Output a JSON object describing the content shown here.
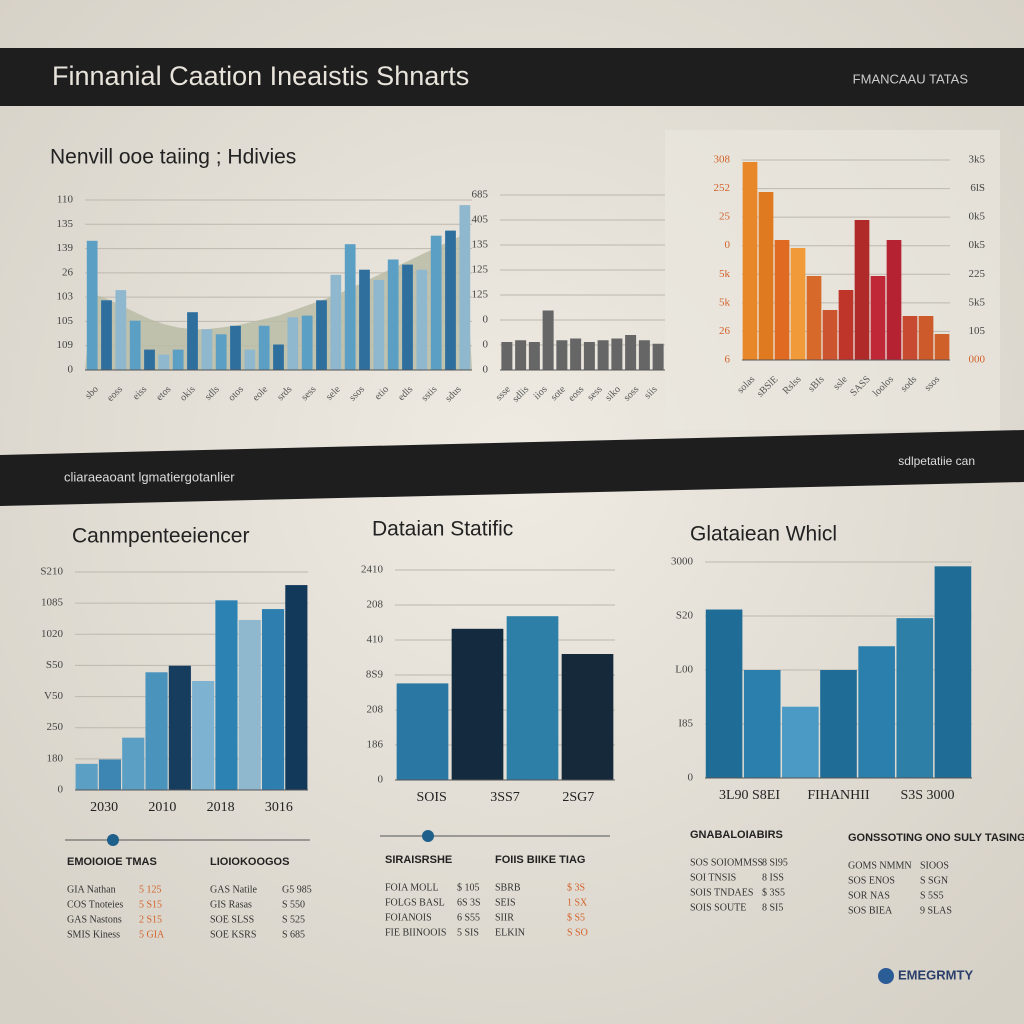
{
  "header": {
    "title": "Finnanial Caation Ineaistis Shnarts",
    "right": "FMANCAAU TATAS"
  },
  "band": {
    "left": "cliaraeaoant lgmatiergotanlier",
    "right": "sdlpetatiie can"
  },
  "logo": "EMEGRMTY",
  "chart_data": [
    {
      "type": "bar",
      "title": "Nenvill ooe taiing ; Hdivies",
      "ylim": [
        0,
        100
      ],
      "y_axis_labels": [
        "0",
        "109",
        "105",
        "103",
        "26",
        "139",
        "135",
        "110"
      ],
      "values": [
        76,
        41,
        47,
        29,
        12,
        9,
        12,
        34,
        24,
        21,
        26,
        12,
        26,
        15,
        31,
        32,
        41,
        56,
        74,
        59,
        53,
        65,
        62,
        59,
        79,
        82,
        97
      ],
      "area": [
        45,
        42,
        38,
        34,
        30,
        27,
        25,
        24,
        24,
        25,
        26,
        28,
        30,
        32,
        35,
        38,
        41,
        44,
        48,
        52,
        56,
        60,
        64,
        68,
        72,
        76,
        80
      ],
      "area_color": "#b9bca6",
      "colors": [
        "#5b9fc4",
        "#2e6f9e",
        "#8fb8cf"
      ],
      "x_labels": [
        "sbo",
        "eoss",
        "eiss",
        "etos",
        "okis",
        "sdls",
        "otos",
        "eole",
        "srds",
        "sess",
        "sele",
        "ssos",
        "etio",
        "edls",
        "sstis",
        "sdus"
      ]
    },
    {
      "type": "bar",
      "ylim": [
        0,
        100
      ],
      "y_axis_labels": [
        "0",
        "0",
        "0",
        "125",
        "125",
        "135",
        "405",
        "685"
      ],
      "values": [
        16,
        17,
        16,
        34,
        17,
        18,
        16,
        17,
        18,
        20,
        17,
        15
      ],
      "colors": [
        "#666666"
      ],
      "x_labels": [
        "ssse",
        "sdlis",
        "iios",
        "sote",
        "eoss",
        "sess",
        "siko",
        "soss",
        "siis"
      ]
    },
    {
      "type": "bar",
      "ylim": [
        0,
        100
      ],
      "y_axis_labels": [
        "6",
        "26",
        "5k",
        "5k",
        "0",
        "25",
        "252",
        "308"
      ],
      "y2_axis_labels": [
        "000",
        "105",
        "5k5",
        "225",
        "0k5",
        "0k5",
        "6lS",
        "3k5"
      ],
      "values": [
        99,
        84,
        60,
        56,
        42,
        25,
        35,
        70,
        42,
        60,
        22,
        22,
        13
      ],
      "colors": [
        "#e8872a",
        "#e07a20",
        "#e06a22",
        "#f09a3a",
        "#d76a2a",
        "#cc5530",
        "#c0352a",
        "#b02a2a",
        "#c02838",
        "#b52232",
        "#c84a30",
        "#cc5a2a",
        "#d0602a"
      ],
      "x_labels": [
        "solas",
        "sBSlE",
        "Rslss",
        "sBIs",
        "ssle",
        "SASS",
        "loolos",
        "sods",
        "ssos"
      ]
    },
    {
      "type": "bar",
      "title": "Canmpenteeiencer",
      "ylim": [
        0,
        100
      ],
      "y_axis_labels": [
        "0",
        "180",
        "250",
        "V50",
        "S50",
        "1020",
        "1085",
        "S210"
      ],
      "values": [
        12,
        14,
        24,
        54,
        57,
        50,
        87,
        78,
        83,
        94
      ],
      "colors": [
        "#5b9fc4",
        "#3d86b3",
        "#5b9fc4",
        "#4a93bd",
        "#163d5e",
        "#7db2d1",
        "#2b82b3",
        "#8fb8cf",
        "#2e7fb0",
        "#12395a"
      ],
      "x_labels": [
        "2030",
        "2010",
        "2018",
        "3016"
      ]
    },
    {
      "type": "bar",
      "title": "Dataian Statific",
      "ylim": [
        0,
        100
      ],
      "y_axis_labels": [
        "0",
        "186",
        "208",
        "8S9",
        "410",
        "208",
        "2410"
      ],
      "values": [
        46,
        72,
        78,
        60
      ],
      "colors": [
        "#2b77a3",
        "#142a3e",
        "#2e7fa8",
        "#16293b"
      ],
      "x_labels": [
        "SOIS",
        "3SS7",
        "2SG7"
      ]
    },
    {
      "type": "bar",
      "title": "Glataiean Whicl",
      "ylim": [
        0,
        100
      ],
      "y_axis_labels": [
        "0",
        "I85",
        "L00",
        "S20",
        "3000"
      ],
      "values": [
        78,
        50,
        33,
        50,
        61,
        74,
        98
      ],
      "colors": [
        "#1f6c97",
        "#2a7fad",
        "#4a9ac5",
        "#1f6c97",
        "#2a7fad",
        "#2e7fa8",
        "#1f6c97"
      ],
      "x_labels": [
        "3L90 S8EI",
        "FIHANHII",
        "S3S 3000"
      ]
    }
  ],
  "tables": [
    {
      "title": "EMOIOIOE TMAS",
      "rows": [
        [
          "GIA Nathan",
          "5 125"
        ],
        [
          "COS Tnoteies",
          "5 S15"
        ],
        [
          "GAS Nastons",
          "2 S15"
        ],
        [
          "SMIS Kiness",
          "5 GIA"
        ]
      ]
    },
    {
      "title": "LIOIOKOOGOS",
      "rows": [
        [
          "GAS Natile",
          "G5 985"
        ],
        [
          "GIS Rasas",
          "S 550"
        ],
        [
          "SOE SLSS",
          "S 525"
        ],
        [
          "SOE KSRS",
          "S 685"
        ]
      ]
    },
    {
      "title": "SIRAISRSHE",
      "rows": [
        [
          "FOIA MOLL",
          "$ 105"
        ],
        [
          "FOLGS BASL",
          "6S 3S"
        ],
        [
          "FOIANOIS",
          "6 S55"
        ],
        [
          "FIE BIINOOIS",
          "5 SIS"
        ]
      ]
    },
    {
      "title": "FOIIS BIIKE TIAG",
      "rows": [
        [
          "SBRB",
          "$ 3S"
        ],
        [
          "SEIS",
          "1 SX"
        ],
        [
          "SIIR",
          "$ S5"
        ],
        [
          "ELKIN",
          "S SO"
        ]
      ]
    },
    {
      "title": "GNABALOIABIRS",
      "rows": [
        [
          "SOS SOIOMMSS",
          "8 Sl95"
        ],
        [
          "SOI TNSIS",
          "8 ISS"
        ],
        [
          "SOIS TNDAES",
          "$ 3S5"
        ],
        [
          "SOIS SOUTE",
          "8 SI5"
        ]
      ]
    },
    {
      "title": "GONSSOTING ONO SULY TASINGS",
      "rows": [
        [
          "GOMS NMMN",
          "SIOOS"
        ],
        [
          "SOS ENOS",
          "S SGN"
        ],
        [
          "SOR NAS",
          "S 5S5"
        ],
        [
          "SOS BIEA",
          "9 SLAS"
        ]
      ]
    }
  ]
}
